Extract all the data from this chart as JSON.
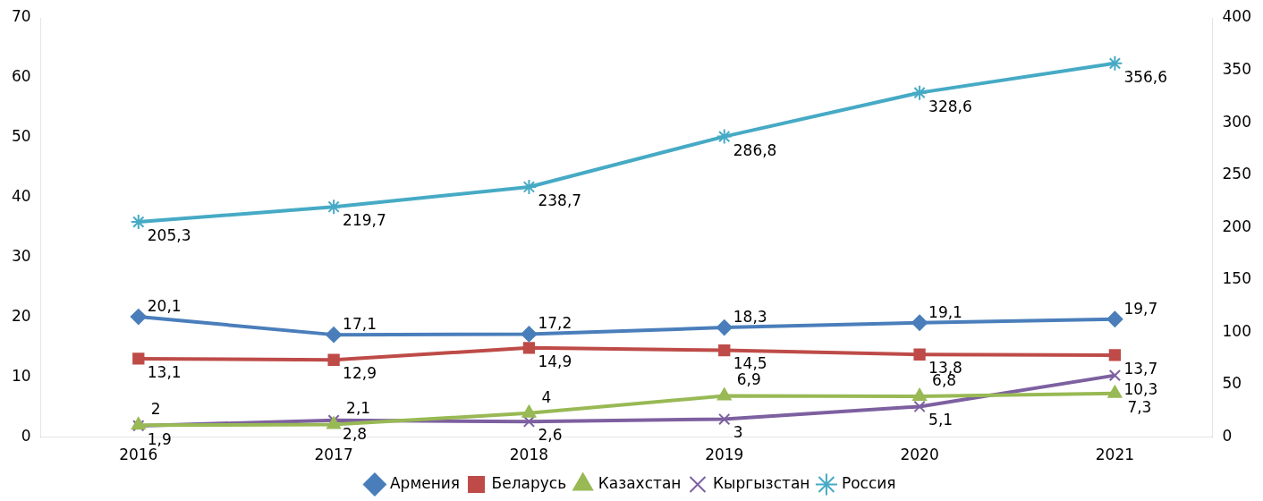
{
  "chart_data": {
    "type": "line",
    "categories": [
      "2016",
      "2017",
      "2018",
      "2019",
      "2020",
      "2021"
    ],
    "series": [
      {
        "name": "Армения",
        "color": "#4a7ebb",
        "marker": "diamond",
        "values": [
          20.1,
          17.1,
          17.2,
          18.3,
          19.1,
          19.7
        ],
        "value_labels": [
          "20,1",
          "17,1",
          "17,2",
          "18,3",
          "19,1",
          "19,7"
        ]
      },
      {
        "name": "Беларусь",
        "color": "#be4b48",
        "marker": "square",
        "values": [
          13.1,
          12.9,
          14.9,
          14.5,
          13.8,
          13.7
        ],
        "value_labels": [
          "13,1",
          "12,9",
          "14,9",
          "14,5",
          "13,8",
          "13,7"
        ]
      },
      {
        "name": "Казахстан",
        "color": "#98b954",
        "marker": "triangle",
        "values": [
          2,
          2.1,
          4,
          6.9,
          6.8,
          7.3
        ],
        "value_labels": [
          "2",
          "2,1",
          "4",
          "6,9",
          "6,8",
          "7,3"
        ]
      },
      {
        "name": "Кыргызстан",
        "color": "#7d60a0",
        "marker": "cross",
        "values": [
          1.9,
          2.8,
          2.6,
          3,
          5.1,
          10.3
        ],
        "value_labels": [
          "1,9",
          "2,8",
          "2,6",
          "3",
          "5,1",
          "10,3"
        ]
      },
      {
        "name": "Россия",
        "color": "#46aac5",
        "marker": "cross",
        "axis": "y2",
        "values": [
          205.3,
          219.7,
          238.7,
          286.8,
          328.6,
          356.6
        ],
        "value_labels": [
          "205,3",
          "219,7",
          "238,7",
          "286,8",
          "328,6",
          "356,6"
        ]
      }
    ],
    "ylim": [
      0,
      70
    ],
    "yticks": [
      0,
      10,
      20,
      30,
      40,
      50,
      60,
      70
    ],
    "y2lim": [
      0,
      400
    ],
    "y2ticks": [
      0,
      50,
      100,
      150,
      200,
      250,
      300,
      350,
      400
    ],
    "legend": "bottom",
    "grid": false
  }
}
